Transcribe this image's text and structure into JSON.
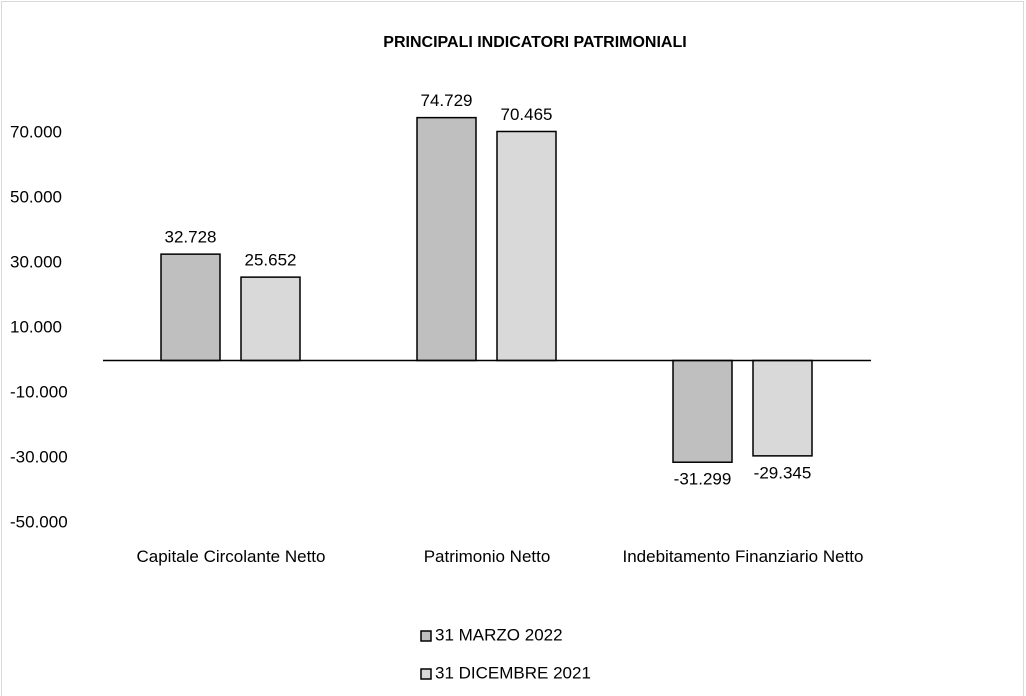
{
  "chart_data": {
    "type": "bar",
    "title": "PRINCIPALI INDICATORI PATRIMONIALI",
    "categories": [
      "Capitale Circolante Netto",
      "Patrimonio Netto",
      "Indebitamento Finanziario Netto"
    ],
    "series": [
      {
        "name": "31 MARZO 2022",
        "color": "#bfbfbf",
        "values": [
          32728,
          74729,
          -31299
        ],
        "value_labels": [
          "32.728",
          "74.729",
          "-31.299"
        ]
      },
      {
        "name": "31 DICEMBRE 2021",
        "color": "#d9d9d9",
        "values": [
          25652,
          70465,
          -29345
        ],
        "value_labels": [
          "25.652",
          "70.465",
          "-29.345"
        ]
      }
    ],
    "ylim": [
      -50000,
      80000
    ],
    "yticks": [
      {
        "value": -50000,
        "label": "-50.000"
      },
      {
        "value": -30000,
        "label": "-30.000"
      },
      {
        "value": -10000,
        "label": "-10.000"
      },
      {
        "value": 10000,
        "label": "10.000"
      },
      {
        "value": 30000,
        "label": "30.000"
      },
      {
        "value": 50000,
        "label": "50.000"
      },
      {
        "value": 70000,
        "label": "70.000"
      }
    ],
    "grid": false,
    "legend": "bottom"
  }
}
